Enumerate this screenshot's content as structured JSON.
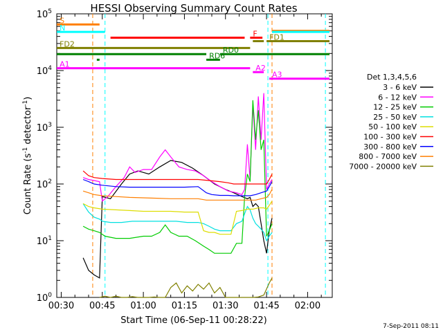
{
  "chart_data": {
    "type": "line",
    "title": "HESSI Observing Summary Count Rates",
    "xlabel": "Start Time (06-Sep-11 00:28:22)",
    "ylabel_main": "Count Rate (s",
    "ylabel_sup1": "-1",
    "ylabel_mid": " detector",
    "ylabel_sup2": "-1",
    "ylabel_end": ")",
    "yscale": "log",
    "ylim": [
      1,
      100000
    ],
    "xlim_minutes": [
      28.37,
      129
    ],
    "x_ticks": [
      {
        "min": 30,
        "label": "00:30"
      },
      {
        "min": 45,
        "label": "00:45"
      },
      {
        "min": 60,
        "label": "01:00"
      },
      {
        "min": 75,
        "label": "01:15"
      },
      {
        "min": 90,
        "label": "01:30"
      },
      {
        "min": 105,
        "label": "01:45"
      },
      {
        "min": 120,
        "label": "02:00"
      }
    ],
    "y_ticks": [
      {
        "v": 1,
        "base": "10",
        "exp": "0"
      },
      {
        "v": 10,
        "base": "10",
        "exp": "1"
      },
      {
        "v": 100,
        "base": "10",
        "exp": "2"
      },
      {
        "v": 1000,
        "base": "10",
        "exp": "3"
      },
      {
        "v": 10000,
        "base": "10",
        "exp": "4"
      },
      {
        "v": 100000,
        "base": "10",
        "exp": "5"
      }
    ],
    "legend_title": "Det 1,3,4,5,6",
    "series": [
      {
        "name": "3 - 6 keV",
        "color": "#000000",
        "points": [
          [
            38,
            5
          ],
          [
            40,
            3
          ],
          [
            42,
            2.5
          ],
          [
            44,
            2.2
          ],
          [
            45,
            60
          ],
          [
            48,
            55
          ],
          [
            52,
            100
          ],
          [
            55,
            150
          ],
          [
            58,
            170
          ],
          [
            62,
            150
          ],
          [
            66,
            200
          ],
          [
            70,
            260
          ],
          [
            74,
            240
          ],
          [
            78,
            190
          ],
          [
            82,
            140
          ],
          [
            86,
            100
          ],
          [
            90,
            80
          ],
          [
            93,
            70
          ],
          [
            96,
            60
          ],
          [
            98,
            55
          ],
          [
            99,
            58
          ],
          [
            100,
            40
          ],
          [
            101,
            45
          ],
          [
            102,
            40
          ],
          [
            103,
            20
          ],
          [
            104,
            10
          ],
          [
            105,
            6
          ],
          [
            106,
            15
          ],
          [
            107,
            25
          ]
        ]
      },
      {
        "name": "6 - 12 keV",
        "color": "#ff00ff",
        "points": [
          [
            38,
            130
          ],
          [
            40,
            120
          ],
          [
            42,
            115
          ],
          [
            44,
            110
          ],
          [
            45,
            50
          ],
          [
            47,
            60
          ],
          [
            50,
            90
          ],
          [
            53,
            130
          ],
          [
            55,
            200
          ],
          [
            57,
            160
          ],
          [
            60,
            180
          ],
          [
            63,
            180
          ],
          [
            66,
            300
          ],
          [
            68,
            400
          ],
          [
            70,
            300
          ],
          [
            73,
            200
          ],
          [
            76,
            180
          ],
          [
            79,
            170
          ],
          [
            82,
            140
          ],
          [
            85,
            110
          ],
          [
            88,
            90
          ],
          [
            91,
            75
          ],
          [
            94,
            70
          ],
          [
            96,
            65
          ],
          [
            97,
            80
          ],
          [
            98,
            500
          ],
          [
            99,
            120
          ],
          [
            100,
            2500
          ],
          [
            101,
            400
          ],
          [
            102,
            3500
          ],
          [
            103,
            600
          ],
          [
            104,
            4000
          ],
          [
            105,
            80
          ],
          [
            106,
            100
          ],
          [
            107,
            120
          ]
        ]
      },
      {
        "name": "12 - 25 keV",
        "color": "#00cc00",
        "points": [
          [
            38,
            18
          ],
          [
            40,
            16
          ],
          [
            42,
            15
          ],
          [
            44,
            14
          ],
          [
            46,
            12
          ],
          [
            50,
            11
          ],
          [
            55,
            11
          ],
          [
            60,
            12
          ],
          [
            63,
            12
          ],
          [
            66,
            14
          ],
          [
            68,
            19
          ],
          [
            70,
            14
          ],
          [
            73,
            12
          ],
          [
            76,
            12
          ],
          [
            79,
            10
          ],
          [
            82,
            8
          ],
          [
            84,
            7
          ],
          [
            86,
            6
          ],
          [
            88,
            6
          ],
          [
            90,
            6
          ],
          [
            92,
            6
          ],
          [
            94,
            9
          ],
          [
            96,
            9
          ],
          [
            97,
            60
          ],
          [
            98,
            150
          ],
          [
            99,
            110
          ],
          [
            100,
            3000
          ],
          [
            101,
            600
          ],
          [
            102,
            2000
          ],
          [
            103,
            400
          ],
          [
            104,
            600
          ],
          [
            105,
            12
          ],
          [
            106,
            15
          ],
          [
            107,
            20
          ]
        ]
      },
      {
        "name": "25 - 50 keV",
        "color": "#00e0e0",
        "points": [
          [
            38,
            45
          ],
          [
            40,
            32
          ],
          [
            42,
            26
          ],
          [
            44,
            24
          ],
          [
            45,
            22
          ],
          [
            48,
            21
          ],
          [
            52,
            21
          ],
          [
            56,
            22
          ],
          [
            60,
            22
          ],
          [
            64,
            22
          ],
          [
            68,
            22
          ],
          [
            72,
            22
          ],
          [
            76,
            21
          ],
          [
            80,
            21
          ],
          [
            82,
            20
          ],
          [
            84,
            18
          ],
          [
            86,
            16
          ],
          [
            88,
            15
          ],
          [
            90,
            15
          ],
          [
            92,
            15
          ],
          [
            94,
            20
          ],
          [
            96,
            22
          ],
          [
            97,
            30
          ],
          [
            98,
            40
          ],
          [
            99,
            35
          ],
          [
            100,
            25
          ],
          [
            101,
            20
          ],
          [
            102,
            18
          ],
          [
            103,
            16
          ],
          [
            104,
            14
          ],
          [
            105,
            10
          ],
          [
            106,
            12
          ],
          [
            107,
            14
          ]
        ]
      },
      {
        "name": "50 - 100 keV",
        "color": "#dddd00",
        "points": [
          [
            38,
            45
          ],
          [
            40,
            40
          ],
          [
            42,
            38
          ],
          [
            45,
            36
          ],
          [
            50,
            35
          ],
          [
            55,
            34
          ],
          [
            60,
            33
          ],
          [
            65,
            33
          ],
          [
            70,
            33
          ],
          [
            75,
            32
          ],
          [
            80,
            32
          ],
          [
            82,
            15
          ],
          [
            84,
            14
          ],
          [
            86,
            14
          ],
          [
            88,
            13
          ],
          [
            90,
            13
          ],
          [
            92,
            13
          ],
          [
            94,
            33
          ],
          [
            96,
            34
          ],
          [
            98,
            36
          ],
          [
            100,
            36
          ],
          [
            102,
            38
          ],
          [
            104,
            38
          ],
          [
            105,
            36
          ],
          [
            106,
            42
          ],
          [
            107,
            50
          ]
        ]
      },
      {
        "name": "100 - 300 keV",
        "color": "#ff0000",
        "points": [
          [
            38,
            170
          ],
          [
            40,
            140
          ],
          [
            42,
            130
          ],
          [
            45,
            125
          ],
          [
            50,
            120
          ],
          [
            55,
            120
          ],
          [
            60,
            120
          ],
          [
            65,
            120
          ],
          [
            70,
            120
          ],
          [
            75,
            120
          ],
          [
            80,
            120
          ],
          [
            84,
            115
          ],
          [
            88,
            110
          ],
          [
            91,
            105
          ],
          [
            93,
            100
          ],
          [
            95,
            100
          ],
          [
            97,
            100
          ],
          [
            99,
            100
          ],
          [
            101,
            100
          ],
          [
            103,
            100
          ],
          [
            105,
            100
          ],
          [
            106,
            120
          ],
          [
            107,
            150
          ]
        ]
      },
      {
        "name": "300 - 800 keV",
        "color": "#0000ff",
        "points": [
          [
            38,
            120
          ],
          [
            40,
            110
          ],
          [
            42,
            100
          ],
          [
            45,
            95
          ],
          [
            50,
            90
          ],
          [
            55,
            88
          ],
          [
            60,
            88
          ],
          [
            65,
            88
          ],
          [
            70,
            88
          ],
          [
            75,
            88
          ],
          [
            80,
            90
          ],
          [
            83,
            70
          ],
          [
            85,
            65
          ],
          [
            88,
            63
          ],
          [
            91,
            63
          ],
          [
            93,
            62
          ],
          [
            95,
            62
          ],
          [
            97,
            62
          ],
          [
            99,
            62
          ],
          [
            101,
            65
          ],
          [
            103,
            70
          ],
          [
            105,
            75
          ],
          [
            106,
            90
          ],
          [
            107,
            110
          ]
        ]
      },
      {
        "name": "800 - 7000 keV",
        "color": "#ff7f00",
        "points": [
          [
            38,
            75
          ],
          [
            40,
            70
          ],
          [
            42,
            65
          ],
          [
            45,
            62
          ],
          [
            50,
            60
          ],
          [
            55,
            58
          ],
          [
            60,
            57
          ],
          [
            65,
            56
          ],
          [
            70,
            55
          ],
          [
            75,
            55
          ],
          [
            80,
            55
          ],
          [
            83,
            52
          ],
          [
            86,
            52
          ],
          [
            89,
            52
          ],
          [
            92,
            52
          ],
          [
            95,
            52
          ],
          [
            98,
            52
          ],
          [
            101,
            52
          ],
          [
            103,
            55
          ],
          [
            105,
            58
          ],
          [
            106,
            65
          ],
          [
            107,
            80
          ]
        ]
      },
      {
        "name": "7000 - 20000 keV",
        "color": "#808000",
        "points": [
          [
            44,
            1
          ],
          [
            46,
            1.05
          ],
          [
            48,
            1
          ],
          [
            50,
            1.05
          ],
          [
            52,
            1
          ],
          [
            54,
            1
          ],
          [
            56,
            1.03
          ],
          [
            58,
            1
          ],
          [
            60,
            1
          ],
          [
            62,
            1
          ],
          [
            64,
            1.02
          ],
          [
            66,
            1
          ],
          [
            68,
            1
          ],
          [
            70,
            1.5
          ],
          [
            72,
            1.8
          ],
          [
            74,
            1.2
          ],
          [
            76,
            1.6
          ],
          [
            78,
            1.3
          ],
          [
            80,
            1.7
          ],
          [
            82,
            1.4
          ],
          [
            84,
            1.8
          ],
          [
            86,
            1.2
          ],
          [
            88,
            1.5
          ],
          [
            90,
            1
          ],
          [
            92,
            1
          ],
          [
            94,
            1
          ],
          [
            96,
            1
          ],
          [
            98,
            1
          ],
          [
            100,
            1
          ],
          [
            102,
            1.02
          ],
          [
            104,
            1.1
          ],
          [
            106,
            1.8
          ],
          [
            107,
            2.2
          ]
        ]
      }
    ],
    "flag_bars": [
      {
        "label": "S",
        "color": "#ff7f00",
        "y": 65000,
        "segments": [
          [
            28.4,
            44
          ]
        ]
      },
      {
        "label": "N",
        "color": "#00ffff",
        "y": 48000,
        "segments": [
          [
            28.4,
            46
          ]
        ]
      },
      {
        "label": "F",
        "color": "#ff0000",
        "y": 38000,
        "segments": [
          [
            48,
            97
          ],
          [
            99,
            103.5
          ]
        ]
      },
      {
        "label": "FD1",
        "color": "#808000",
        "y": 33000,
        "segments": [
          [
            100,
            104
          ],
          [
            105,
            128
          ]
        ]
      },
      {
        "label": "FD2",
        "color": "#808000",
        "y": 25000,
        "segments": [
          [
            28.4,
            99
          ]
        ]
      },
      {
        "label": "RD0",
        "color": "#008000",
        "y": 19500,
        "segments": [
          [
            28.4,
            83
          ],
          [
            88,
            128
          ]
        ]
      },
      {
        "label": "RD6",
        "color": "#008000",
        "y": 15500,
        "segments": [
          [
            43,
            44
          ],
          [
            83,
            88
          ]
        ]
      },
      {
        "label": "A1",
        "color": "#ff00ff",
        "y": 11000,
        "segments": [
          [
            28.4,
            99
          ]
        ]
      },
      {
        "label": "A2",
        "color": "#ff00ff",
        "y": 9400,
        "segments": [
          [
            100,
            104
          ]
        ]
      },
      {
        "label": "A3",
        "color": "#ff00ff",
        "y": 7200,
        "segments": [
          [
            106,
            128
          ]
        ]
      },
      {
        "label": "",
        "color": "#ff7f00",
        "y": 50000,
        "segments": [
          [
            107,
            128
          ]
        ]
      },
      {
        "label": "",
        "color": "#00ffff",
        "y": 48000,
        "segments": [
          [
            107,
            128
          ]
        ]
      }
    ],
    "vlines": [
      {
        "min": 41.5,
        "color": "#ff7f00"
      },
      {
        "min": 46.0,
        "color": "#00ffff"
      },
      {
        "min": 105.5,
        "color": "#00ffff"
      },
      {
        "min": 107.0,
        "color": "#ff7f00"
      },
      {
        "min": 126.5,
        "color": "#00ffff"
      }
    ],
    "timestamp": "7-Sep-2011 08:11"
  }
}
